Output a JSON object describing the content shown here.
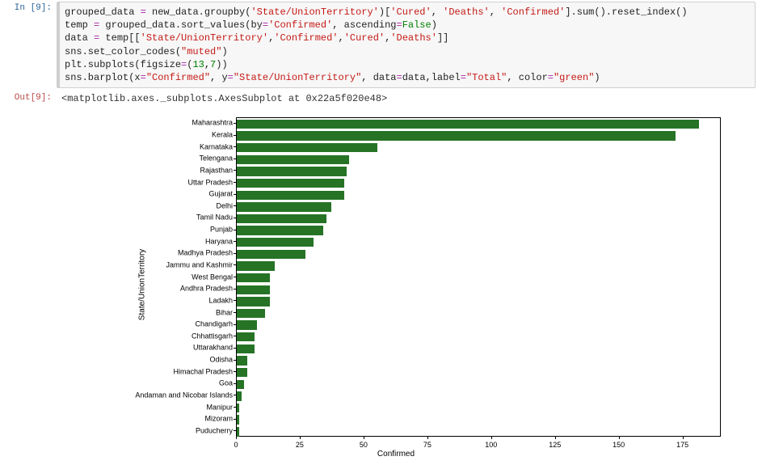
{
  "prompts": {
    "in_label": "In [9]:",
    "out_label": "Out[9]:"
  },
  "code": {
    "l1": {
      "a": "grouped_data ",
      "op": "=",
      "b": " new_data.groupby(",
      "s1": "'State/UnionTerritory'",
      "c": ")[",
      "s2": "'Cured'",
      "d": ", ",
      "s3": "'Deaths'",
      "e": ", ",
      "s4": "'Confirmed'",
      "f": "].sum().reset_index()"
    },
    "l2": {
      "a": "temp ",
      "op": "=",
      "b": " grouped_data.sort_values(by",
      "op2": "=",
      "s1": "'Confirmed'",
      "c": ", ascending",
      "op3": "=",
      "kw": "False",
      "d": ")"
    },
    "l3": {
      "a": "data ",
      "op": "=",
      "b": " temp[[",
      "s1": "'State/UnionTerritory'",
      "c": ",",
      "s2": "'Confirmed'",
      "d": ",",
      "s3": "'Cured'",
      "e": ",",
      "s4": "'Deaths'",
      "f": "]]"
    },
    "l4": {
      "a": "sns.set_color_codes(",
      "s1": "\"muted\"",
      "b": ")"
    },
    "l5": {
      "a": "plt.subplots(figsize",
      "op": "=",
      "b": "(",
      "n1": "13",
      "c": ",",
      "n2": "7",
      "d": "))"
    },
    "l6": {
      "a": "sns.barplot(x",
      "op": "=",
      "s1": "\"Confirmed\"",
      "b": ", y",
      "op2": "=",
      "s2": "\"State/UnionTerritory\"",
      "c": ", data",
      "op3": "=",
      "d": "data,label",
      "op4": "=",
      "s3": "\"Total\"",
      "e": ", color",
      "op5": "=",
      "s4": "\"green\"",
      "f": ")"
    }
  },
  "output_text": "<matplotlib.axes._subplots.AxesSubplot at 0x22a5f020e48>",
  "chart": {
    "type": "bar-horizontal",
    "xlabel": "Confirmed",
    "ylabel": "State/UnionTerritory",
    "xlim": [
      0,
      190
    ],
    "xticks": [
      0,
      25,
      50,
      75,
      100,
      125,
      150,
      175
    ],
    "bar_color": "#267326",
    "background_color": "#ffffff",
    "border_color": "#000000",
    "title_fontsize": 10,
    "tick_fontsize": 9,
    "categories": [
      "Maharashtra",
      "Kerala",
      "Karnataka",
      "Telengana",
      "Rajasthan",
      "Uttar Pradesh",
      "Gujarat",
      "Delhi",
      "Tamil Nadu",
      "Punjab",
      "Haryana",
      "Madhya Pradesh",
      "Jammu and Kashmir",
      "West Bengal",
      "Andhra Pradesh",
      "Ladakh",
      "Bihar",
      "Chandigarh",
      "Chhattisgarh",
      "Uttarakhand",
      "Odisha",
      "Himachal Pradesh",
      "Goa",
      "Andaman and Nicobar Islands",
      "Manipur",
      "Mizoram",
      "Puducherry"
    ],
    "values": [
      181,
      172,
      55,
      44,
      43,
      42,
      42,
      37,
      35,
      34,
      30,
      27,
      15,
      13,
      13,
      13,
      11,
      8,
      7,
      7,
      4,
      4,
      3,
      2,
      1,
      1,
      1
    ]
  }
}
